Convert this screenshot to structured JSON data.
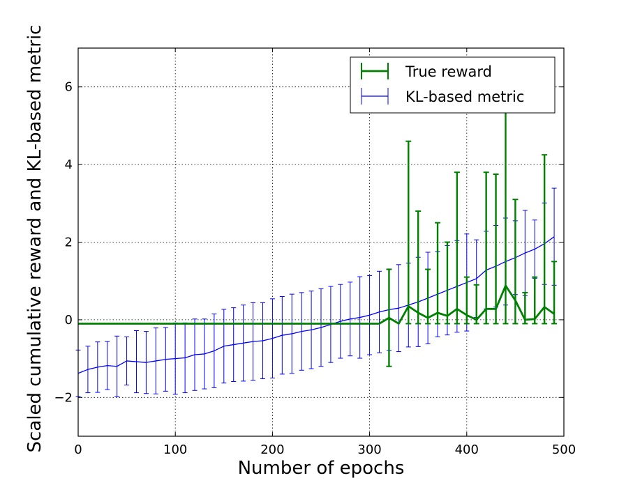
{
  "chart_data": {
    "type": "line",
    "xlabel": "Number of epochs",
    "ylabel": "Scaled cumulative reward and KL-based metric",
    "xlim": [
      0,
      500
    ],
    "ylim": [
      -3,
      7
    ],
    "xticks": [
      0,
      100,
      200,
      300,
      400,
      500
    ],
    "yticks": [
      -2,
      0,
      2,
      4,
      6
    ],
    "xtick_labels": [
      "0",
      "100",
      "200",
      "300",
      "400",
      "500"
    ],
    "ytick_labels": [
      "−2",
      "0",
      "2",
      "4",
      "6"
    ],
    "grid": true,
    "legend_position": "top-right",
    "series": [
      {
        "name": "True reward",
        "color": "#008000",
        "x": [
          0,
          10,
          20,
          30,
          40,
          50,
          60,
          70,
          80,
          90,
          100,
          110,
          120,
          130,
          140,
          150,
          160,
          170,
          180,
          190,
          200,
          210,
          220,
          230,
          240,
          250,
          260,
          270,
          280,
          290,
          300,
          310,
          320,
          330,
          340,
          350,
          360,
          370,
          380,
          390,
          400,
          410,
          420,
          430,
          440,
          450,
          460,
          470,
          480,
          490
        ],
        "y": [
          -0.1,
          -0.1,
          -0.1,
          -0.1,
          -0.1,
          -0.1,
          -0.1,
          -0.1,
          -0.1,
          -0.1,
          -0.1,
          -0.1,
          -0.1,
          -0.1,
          -0.1,
          -0.1,
          -0.1,
          -0.1,
          -0.1,
          -0.1,
          -0.1,
          -0.1,
          -0.1,
          -0.1,
          -0.1,
          -0.1,
          -0.1,
          -0.1,
          -0.1,
          -0.1,
          -0.1,
          -0.1,
          0.05,
          -0.1,
          0.35,
          0.18,
          0.05,
          0.18,
          0.1,
          0.28,
          0.12,
          0.0,
          0.28,
          0.28,
          0.88,
          0.5,
          0.0,
          0.02,
          0.33,
          0.15
        ],
        "err_low": [
          0,
          0,
          0,
          0,
          0,
          0,
          0,
          0,
          0,
          0,
          0,
          0,
          0,
          0,
          0,
          0,
          0,
          0,
          0,
          0,
          0,
          0,
          0,
          0,
          0,
          0,
          0,
          0,
          0,
          0,
          0,
          0,
          1.25,
          0,
          0.45,
          0.28,
          0.15,
          0.28,
          0.2,
          0.38,
          0.22,
          0.1,
          0.38,
          0.38,
          0.98,
          0.6,
          0.1,
          0.12,
          0.43,
          0.25
        ],
        "err_high": [
          0,
          0,
          0,
          0,
          0,
          0,
          0,
          0,
          0,
          0,
          0,
          0,
          0,
          0,
          0,
          0,
          0,
          0,
          0,
          0,
          0,
          0,
          0,
          0,
          0,
          0,
          0,
          0,
          0,
          0,
          0,
          0,
          1.25,
          0,
          4.25,
          2.62,
          1.25,
          2.32,
          1.9,
          3.52,
          0.98,
          0.9,
          3.52,
          3.47,
          4.62,
          2.6,
          0.7,
          1.08,
          3.92,
          1.35
        ]
      },
      {
        "name": "KL-based metric",
        "color": "#0000ff",
        "x": [
          0,
          10,
          20,
          30,
          40,
          50,
          60,
          70,
          80,
          90,
          100,
          110,
          120,
          130,
          140,
          150,
          160,
          170,
          180,
          190,
          200,
          210,
          220,
          230,
          240,
          250,
          260,
          270,
          280,
          290,
          300,
          310,
          320,
          330,
          340,
          350,
          360,
          370,
          380,
          390,
          400,
          410,
          420,
          430,
          440,
          450,
          460,
          470,
          480,
          490
        ],
        "y": [
          -1.38,
          -1.28,
          -1.22,
          -1.18,
          -1.2,
          -1.06,
          -1.08,
          -1.1,
          -1.06,
          -1.02,
          -1.0,
          -0.98,
          -0.9,
          -0.88,
          -0.8,
          -0.68,
          -0.64,
          -0.6,
          -0.56,
          -0.54,
          -0.48,
          -0.4,
          -0.36,
          -0.3,
          -0.26,
          -0.2,
          -0.12,
          -0.04,
          0.02,
          0.06,
          0.12,
          0.2,
          0.26,
          0.3,
          0.38,
          0.46,
          0.56,
          0.66,
          0.76,
          0.86,
          0.96,
          1.06,
          1.28,
          1.38,
          1.5,
          1.6,
          1.72,
          1.82,
          1.96,
          2.14
        ],
        "err": [
          0.6,
          0.6,
          0.65,
          0.62,
          0.78,
          0.62,
          0.8,
          0.8,
          0.85,
          0.82,
          0.92,
          0.9,
          0.92,
          0.9,
          0.95,
          0.95,
          0.95,
          0.98,
          1.0,
          0.98,
          1.02,
          1.0,
          1.02,
          1.0,
          1.0,
          1.0,
          0.98,
          0.95,
          0.95,
          1.05,
          1.02,
          1.05,
          1.05,
          1.12,
          1.08,
          1.15,
          1.18,
          1.1,
          1.15,
          1.18,
          1.25,
          1.0,
          1.0,
          1.05,
          1.12,
          0.95,
          1.1,
          0.75,
          1.05,
          1.25
        ]
      }
    ]
  }
}
